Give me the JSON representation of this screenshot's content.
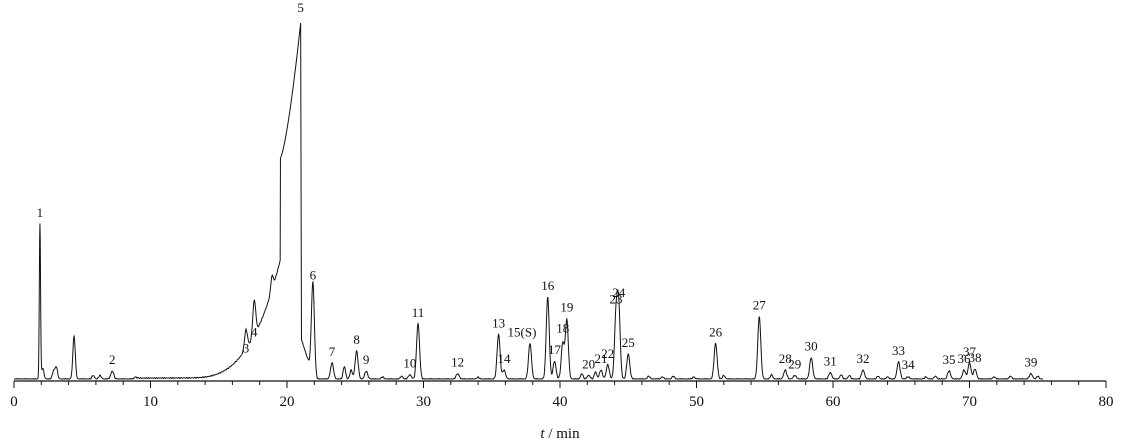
{
  "chart_data": {
    "type": "line",
    "xlabel_var": "t",
    "xlabel_unit": " / min",
    "xlim": [
      0,
      80
    ],
    "ylim": [
      0,
      100
    ],
    "x_ticks": [
      0,
      10,
      20,
      30,
      40,
      50,
      60,
      70,
      80
    ],
    "x_tick_labels": [
      "0",
      "10",
      "20",
      "30",
      "40",
      "50",
      "60",
      "70",
      "80"
    ],
    "grid": false,
    "line_color": "#111111",
    "peaks": [
      {
        "label": "1",
        "t": 1.9,
        "h": 43.5
      },
      {
        "label": "2",
        "t": 7.2,
        "h": 2.2
      },
      {
        "label": "3",
        "t": 17.0,
        "h": 5.5
      },
      {
        "label": "4",
        "t": 17.6,
        "h": 10.0
      },
      {
        "label": "5",
        "t": 21.0,
        "h": 100
      },
      {
        "label": "6",
        "t": 21.9,
        "h": 26.0
      },
      {
        "label": "7",
        "t": 23.3,
        "h": 4.5
      },
      {
        "label": "8",
        "t": 25.1,
        "h": 7.8
      },
      {
        "label": "9",
        "t": 25.8,
        "h": 2.2
      },
      {
        "label": "10",
        "t": 29.0,
        "h": 1.2
      },
      {
        "label": "11",
        "t": 29.6,
        "h": 15.5
      },
      {
        "label": "12",
        "t": 32.5,
        "h": 1.5
      },
      {
        "label": "13",
        "t": 35.5,
        "h": 12.5
      },
      {
        "label": "14",
        "t": 35.9,
        "h": 2.5
      },
      {
        "label": "15(S)",
        "t": 37.8,
        "h": 10.0
      },
      {
        "label": "16",
        "t": 39.1,
        "h": 23.0
      },
      {
        "label": "17",
        "t": 39.6,
        "h": 5.0
      },
      {
        "label": "18",
        "t": 40.2,
        "h": 10.0
      },
      {
        "label": "19",
        "t": 40.5,
        "h": 16.5
      },
      {
        "label": "20",
        "t": 42.1,
        "h": 1.0
      },
      {
        "label": "21",
        "t": 43.0,
        "h": 2.5
      },
      {
        "label": "22",
        "t": 43.5,
        "h": 4.0
      },
      {
        "label": "23",
        "t": 44.1,
        "h": 17.0
      },
      {
        "label": "24",
        "t": 44.3,
        "h": 20.0
      },
      {
        "label": "25",
        "t": 45.0,
        "h": 7.0
      },
      {
        "label": "26",
        "t": 51.4,
        "h": 10.0
      },
      {
        "label": "27",
        "t": 54.6,
        "h": 17.5
      },
      {
        "label": "28",
        "t": 56.5,
        "h": 2.5
      },
      {
        "label": "29",
        "t": 57.2,
        "h": 1.0
      },
      {
        "label": "30",
        "t": 58.4,
        "h": 6.0
      },
      {
        "label": "31",
        "t": 59.8,
        "h": 1.8
      },
      {
        "label": "32",
        "t": 62.2,
        "h": 2.5
      },
      {
        "label": "33",
        "t": 64.8,
        "h": 4.8
      },
      {
        "label": "34",
        "t": 65.5,
        "h": 0.6
      },
      {
        "label": "35",
        "t": 68.5,
        "h": 2.3
      },
      {
        "label": "36",
        "t": 69.6,
        "h": 2.5
      },
      {
        "label": "37",
        "t": 70.0,
        "h": 4.5
      },
      {
        "label": "38",
        "t": 70.4,
        "h": 2.8
      },
      {
        "label": "39",
        "t": 74.5,
        "h": 1.5
      }
    ],
    "minor_peaks": [
      {
        "t": 2.1,
        "h": 3.0
      },
      {
        "t": 2.9,
        "h": 2.2
      },
      {
        "t": 3.1,
        "h": 3.3
      },
      {
        "t": 4.4,
        "h": 12.0
      },
      {
        "t": 5.8,
        "h": 1.0
      },
      {
        "t": 6.3,
        "h": 1.0
      },
      {
        "t": 8.9,
        "h": 0.6
      },
      {
        "t": 18.9,
        "h": 4.0
      },
      {
        "t": 24.2,
        "h": 3.5
      },
      {
        "t": 24.7,
        "h": 2.5
      },
      {
        "t": 27.0,
        "h": 0.6
      },
      {
        "t": 28.4,
        "h": 0.8
      },
      {
        "t": 34.0,
        "h": 0.5
      },
      {
        "t": 41.6,
        "h": 1.5
      },
      {
        "t": 42.6,
        "h": 2.0
      },
      {
        "t": 46.5,
        "h": 0.8
      },
      {
        "t": 47.5,
        "h": 0.6
      },
      {
        "t": 48.3,
        "h": 0.8
      },
      {
        "t": 49.8,
        "h": 0.6
      },
      {
        "t": 52.0,
        "h": 1.0
      },
      {
        "t": 55.5,
        "h": 1.2
      },
      {
        "t": 60.6,
        "h": 1.2
      },
      {
        "t": 61.2,
        "h": 1.0
      },
      {
        "t": 63.3,
        "h": 0.8
      },
      {
        "t": 64.0,
        "h": 0.6
      },
      {
        "t": 66.8,
        "h": 0.6
      },
      {
        "t": 67.5,
        "h": 0.8
      },
      {
        "t": 71.8,
        "h": 0.6
      },
      {
        "t": 73.0,
        "h": 0.8
      },
      {
        "t": 75.0,
        "h": 0.8
      }
    ],
    "hump": {
      "t_start": 12.5,
      "t_peak": 21.0,
      "t_end": 22.0,
      "h_peak": 62
    }
  }
}
